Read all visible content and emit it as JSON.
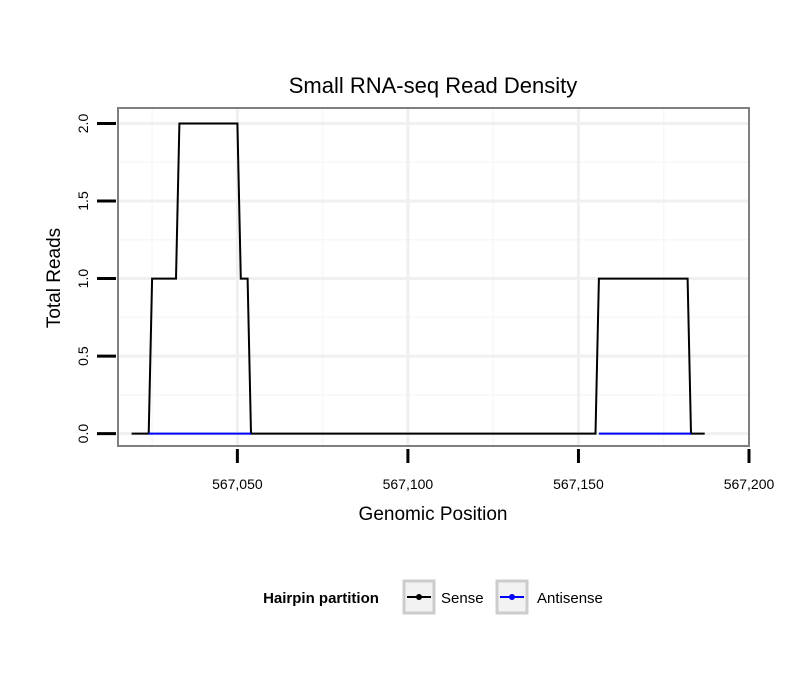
{
  "chart_data": {
    "type": "line",
    "title": "Small RNA-seq Read Density",
    "xlabel": "Genomic Position",
    "ylabel": "Total Reads",
    "xlim": [
      567015,
      567200
    ],
    "ylim": [
      -0.08,
      2.1
    ],
    "x_ticks": [
      567050,
      567100,
      567150,
      567200
    ],
    "x_tick_labels": [
      "567,050",
      "567,100",
      "567,150",
      "567,200"
    ],
    "y_ticks": [
      0,
      0.5,
      1,
      1.5,
      2
    ],
    "y_tick_labels": [
      "0.0",
      "0.5",
      "1.0",
      "1.5",
      "2.0"
    ],
    "grid": true,
    "legend": {
      "title": "Hairpin partition",
      "placement": "bottom"
    },
    "series": [
      {
        "name": "Sense",
        "color": "#000000",
        "x": [
          567019,
          567024,
          567025,
          567032,
          567033,
          567050,
          567051,
          567053,
          567054,
          567155,
          567156,
          567182,
          567183,
          567187
        ],
        "y": [
          0,
          0,
          1,
          1,
          2,
          2,
          1,
          1,
          0,
          0,
          1,
          1,
          0,
          0
        ]
      },
      {
        "name": "Antisense",
        "color": "#0000ff",
        "x": [
          567024,
          567054
        ],
        "y": [
          0,
          0
        ],
        "x2": [
          567156,
          567183
        ],
        "y2": [
          0,
          0
        ]
      }
    ]
  }
}
